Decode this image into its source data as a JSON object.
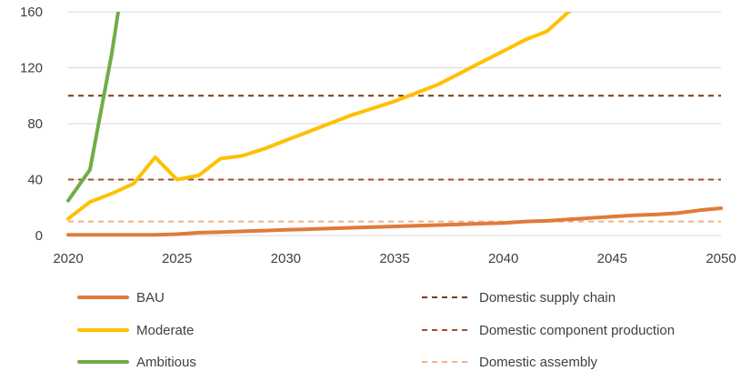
{
  "chart_data": {
    "type": "line",
    "title": "",
    "xlabel": "",
    "ylabel": "",
    "xlim": [
      2020,
      2050
    ],
    "ylim": [
      0,
      160
    ],
    "x_ticks": [
      "2020",
      "2025",
      "2030",
      "2035",
      "2040",
      "2045",
      "2050"
    ],
    "y_ticks": [
      "0",
      "40",
      "80",
      "120",
      "160"
    ],
    "grid": "horizontal",
    "legend_position": "bottom",
    "series": [
      {
        "name": "BAU",
        "color": "#E07B39",
        "style": "solid",
        "points": [
          [
            2020,
            0.5
          ],
          [
            2021,
            0.5
          ],
          [
            2022,
            0.5
          ],
          [
            2023,
            0.5
          ],
          [
            2024,
            0.5
          ],
          [
            2025,
            1
          ],
          [
            2026,
            2
          ],
          [
            2027,
            2.5
          ],
          [
            2028,
            3
          ],
          [
            2029,
            3.5
          ],
          [
            2030,
            4
          ],
          [
            2031,
            4.5
          ],
          [
            2032,
            5
          ],
          [
            2033,
            5.5
          ],
          [
            2034,
            6
          ],
          [
            2035,
            6.5
          ],
          [
            2036,
            7
          ],
          [
            2037,
            7.5
          ],
          [
            2038,
            8
          ],
          [
            2039,
            8.5
          ],
          [
            2040,
            9
          ],
          [
            2041,
            10
          ],
          [
            2042,
            10.5
          ],
          [
            2043,
            11.5
          ],
          [
            2044,
            12.5
          ],
          [
            2045,
            13.5
          ],
          [
            2046,
            14.5
          ],
          [
            2047,
            15
          ],
          [
            2048,
            16
          ],
          [
            2049,
            18
          ],
          [
            2050,
            19.5
          ]
        ]
      },
      {
        "name": "Moderate",
        "color": "#FFC000",
        "style": "solid",
        "points": [
          [
            2020,
            12
          ],
          [
            2021,
            24
          ],
          [
            2022,
            30
          ],
          [
            2023,
            37
          ],
          [
            2024,
            56
          ],
          [
            2025,
            40
          ],
          [
            2026,
            43
          ],
          [
            2027,
            55
          ],
          [
            2028,
            57
          ],
          [
            2029,
            62
          ],
          [
            2030,
            68
          ],
          [
            2031,
            74
          ],
          [
            2032,
            80
          ],
          [
            2033,
            86
          ],
          [
            2034,
            91
          ],
          [
            2035,
            96
          ],
          [
            2036,
            102
          ],
          [
            2037,
            108
          ],
          [
            2038,
            116
          ],
          [
            2039,
            124
          ],
          [
            2040,
            132
          ],
          [
            2041,
            140
          ],
          [
            2042,
            146
          ],
          [
            2043,
            160
          ],
          [
            2044,
            168
          ]
        ]
      },
      {
        "name": "Ambitious",
        "color": "#70AD47",
        "style": "solid",
        "points": [
          [
            2020,
            25
          ],
          [
            2021,
            47
          ],
          [
            2022,
            130
          ],
          [
            2022.4,
            170
          ]
        ]
      },
      {
        "name": "Domestic supply chain",
        "color": "#7B3A10",
        "style": "dashed",
        "points": [
          [
            2020,
            100
          ],
          [
            2050,
            100
          ]
        ]
      },
      {
        "name": "Domestic component production",
        "color": "#A0522D",
        "style": "dashed",
        "points": [
          [
            2020,
            40
          ],
          [
            2050,
            40
          ]
        ]
      },
      {
        "name": "Domestic assembly",
        "color": "#F4B183",
        "style": "dashed",
        "points": [
          [
            2020,
            10
          ],
          [
            2050,
            10
          ]
        ]
      }
    ]
  }
}
